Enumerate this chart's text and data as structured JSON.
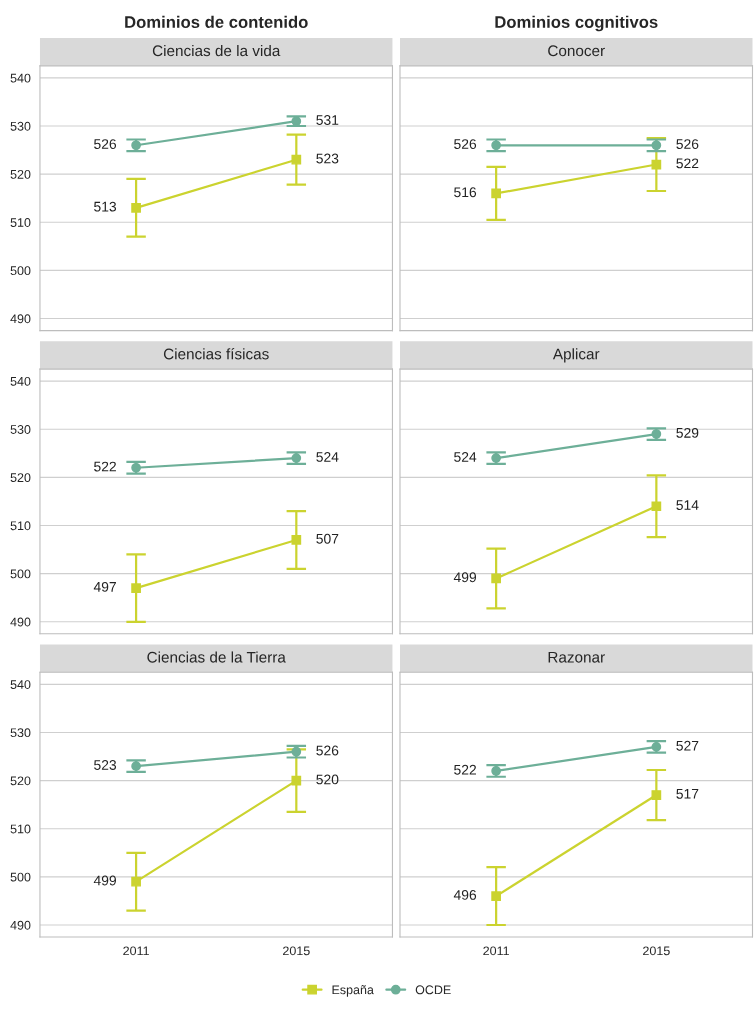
{
  "chart_data": [
    {
      "type": "line",
      "title": "Dominios de contenido",
      "subtitle": "Ciencias de la vida",
      "categories": [
        "2011",
        "2015"
      ],
      "ylim": [
        487.5,
        542.5
      ],
      "yticks": [
        490,
        500,
        510,
        520,
        530,
        540
      ],
      "grid": "y",
      "tick_labels": "y",
      "data_labels": true,
      "legend": "bottom",
      "series": [
        {
          "name": "España",
          "color": "#cbd32f",
          "marker": "square",
          "values": [
            513,
            523
          ],
          "errors": [
            6,
            5.2
          ]
        },
        {
          "name": "OCDE",
          "color": "#6daf98",
          "marker": "circle",
          "values": [
            526,
            531
          ],
          "errors": [
            1.2,
            1
          ]
        }
      ]
    },
    {
      "type": "line",
      "title": "Dominios cognitivos",
      "subtitle": "Conocer",
      "categories": [
        "2011",
        "2015"
      ],
      "ylim": [
        487.5,
        542.5
      ],
      "yticks": [
        490,
        500,
        510,
        520,
        530,
        540
      ],
      "grid": "y",
      "tick_labels": false,
      "data_labels": true,
      "legend": "bottom",
      "series": [
        {
          "name": "España",
          "color": "#cbd32f",
          "marker": "square",
          "values": [
            516,
            522
          ],
          "errors": [
            5.5,
            5.5
          ]
        },
        {
          "name": "OCDE",
          "color": "#6daf98",
          "marker": "circle",
          "values": [
            526,
            526
          ],
          "errors": [
            1.2,
            1.2
          ]
        }
      ]
    },
    {
      "type": "line",
      "subtitle": "Ciencias físicas",
      "categories": [
        "2011",
        "2015"
      ],
      "ylim": [
        487.5,
        542.5
      ],
      "yticks": [
        490,
        500,
        510,
        520,
        530,
        540
      ],
      "grid": "y",
      "tick_labels": "y",
      "data_labels": true,
      "legend": "bottom",
      "series": [
        {
          "name": "España",
          "color": "#cbd32f",
          "marker": "square",
          "values": [
            497,
            507
          ],
          "errors": [
            7,
            6
          ]
        },
        {
          "name": "OCDE",
          "color": "#6daf98",
          "marker": "circle",
          "values": [
            522,
            524
          ],
          "errors": [
            1.2,
            1.2
          ]
        }
      ]
    },
    {
      "type": "line",
      "subtitle": "Aplicar",
      "categories": [
        "2011",
        "2015"
      ],
      "ylim": [
        487.5,
        542.5
      ],
      "yticks": [
        490,
        500,
        510,
        520,
        530,
        540
      ],
      "grid": "y",
      "tick_labels": false,
      "data_labels": true,
      "legend": "bottom",
      "series": [
        {
          "name": "España",
          "color": "#cbd32f",
          "marker": "square",
          "values": [
            499,
            514
          ],
          "errors": [
            6.2,
            6.4
          ]
        },
        {
          "name": "OCDE",
          "color": "#6daf98",
          "marker": "circle",
          "values": [
            524,
            529
          ],
          "errors": [
            1.2,
            1.2
          ]
        }
      ]
    },
    {
      "type": "line",
      "subtitle": "Ciencias de la Tierra",
      "categories": [
        "2011",
        "2015"
      ],
      "ylim": [
        487.5,
        542.5
      ],
      "yticks": [
        490,
        500,
        510,
        520,
        530,
        540
      ],
      "grid": "y",
      "data_labels": true,
      "legend": "bottom",
      "series": [
        {
          "name": "España",
          "color": "#cbd32f",
          "marker": "square",
          "values": [
            499,
            520
          ],
          "errors": [
            6,
            6.5
          ]
        },
        {
          "name": "OCDE",
          "color": "#6daf98",
          "marker": "circle",
          "values": [
            523,
            526
          ],
          "errors": [
            1.2,
            1.2
          ]
        }
      ]
    },
    {
      "type": "line",
      "subtitle": "Razonar",
      "categories": [
        "2011",
        "2015"
      ],
      "ylim": [
        487.5,
        542.5
      ],
      "yticks": [
        490,
        500,
        510,
        520,
        530,
        540
      ],
      "grid": "y",
      "tick_labels": "x",
      "data_labels": true,
      "legend": "bottom",
      "series": [
        {
          "name": "España",
          "color": "#cbd32f",
          "marker": "square",
          "values": [
            496,
            517
          ],
          "errors": [
            6,
            5.2
          ]
        },
        {
          "name": "OCDE",
          "color": "#6daf98",
          "marker": "circle",
          "values": [
            522,
            527
          ],
          "errors": [
            1.2,
            1.2
          ]
        }
      ]
    }
  ]
}
